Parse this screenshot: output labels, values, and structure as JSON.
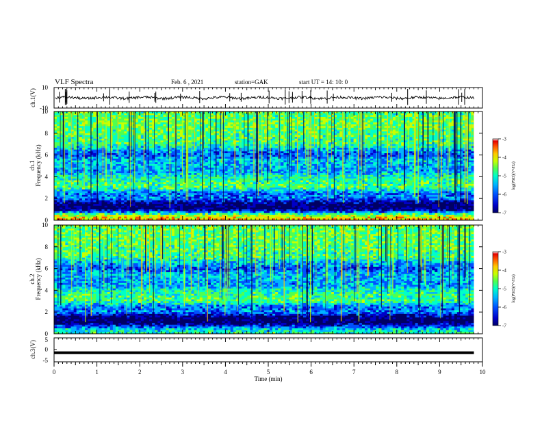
{
  "header": {
    "title": "VLF Spectra",
    "date": "Feb. 6 , 2021",
    "station": "station=GAK",
    "start_ut": "start UT =  14: 10: 0"
  },
  "colors": {
    "colormap": [
      "#000064",
      "#0000c8",
      "#0050ff",
      "#00b4ff",
      "#00ffc8",
      "#50ff50",
      "#c8ff00",
      "#ffc800",
      "#ff5000",
      "#e60000",
      "#ffffff"
    ]
  },
  "chart_data": [
    {
      "type": "line",
      "panel": "ch1-waveform",
      "ylabel": "ch.1(V)",
      "ylim": [
        -10,
        10
      ],
      "yticks": [
        "10",
        "-10"
      ],
      "x": [
        0,
        1,
        2,
        3,
        4,
        5,
        6,
        7,
        8,
        9,
        9.8
      ],
      "values": [
        0,
        0,
        0,
        0,
        0,
        0,
        0,
        0,
        0,
        0,
        0
      ]
    },
    {
      "type": "heatmap",
      "panel": "ch1-spectrogram",
      "ylabel_line1": "ch.1",
      "ylabel_line2": "Frequency (kHz)",
      "ylim": [
        0,
        10
      ],
      "yticks": [
        "0",
        "2",
        "4",
        "6",
        "8",
        "10"
      ],
      "xlim": [
        0,
        9.8
      ],
      "colorbar": {
        "label": "log(PSD)(V²/Hz)",
        "ticks": [
          "-3",
          "-4",
          "-5",
          "-6",
          "-7"
        ],
        "range": [
          -7,
          -3
        ]
      },
      "band_profile_khz": [
        0,
        0.5,
        1,
        1.5,
        2,
        2.5,
        3,
        3.5,
        4,
        4.5,
        5,
        5.5,
        6,
        6.5,
        7,
        8,
        9,
        10
      ],
      "band_profile_log_psd": [
        -3.8,
        -4.6,
        -6.9,
        -6.8,
        -5.8,
        -5.9,
        -4.9,
        -5.0,
        -5.2,
        -5.7,
        -5.6,
        -5.5,
        -6.0,
        -5.6,
        -5.0,
        -4.9,
        -4.8,
        -4.9
      ]
    },
    {
      "type": "heatmap",
      "panel": "ch2-spectrogram",
      "ylabel_line1": "ch.2",
      "ylabel_line2": "Frequency (kHz)",
      "ylim": [
        0,
        10
      ],
      "yticks": [
        "0",
        "2",
        "4",
        "6",
        "8",
        "10"
      ],
      "xlim": [
        0,
        9.8
      ],
      "colorbar": {
        "label": "log(PSD)(V²/Hz)",
        "ticks": [
          "-3",
          "-4",
          "-5",
          "-6",
          "-7"
        ],
        "range": [
          -7,
          -3
        ]
      },
      "band_profile_khz": [
        0,
        0.5,
        1,
        1.5,
        2,
        2.5,
        3,
        3.5,
        4,
        4.5,
        5,
        5.5,
        6,
        6.5,
        7,
        8,
        9,
        10
      ],
      "band_profile_log_psd": [
        -5.0,
        -5.6,
        -6.9,
        -6.8,
        -5.8,
        -5.9,
        -4.9,
        -5.0,
        -5.2,
        -5.7,
        -5.6,
        -5.5,
        -6.0,
        -5.6,
        -5.0,
        -4.9,
        -4.8,
        -4.9
      ]
    },
    {
      "type": "line",
      "panel": "ch3-waveform",
      "ylabel": "ch.3(V)",
      "ylim": [
        -5,
        5
      ],
      "yticks": [
        "5",
        "0",
        "-5"
      ],
      "x": [
        0,
        9.8
      ],
      "values": [
        -1.2,
        -1.2
      ]
    }
  ],
  "xaxis": {
    "label": "Time (min)",
    "xlim": [
      0,
      10
    ],
    "ticks": [
      "0",
      "1",
      "2",
      "3",
      "4",
      "5",
      "6",
      "7",
      "8",
      "9",
      "10"
    ]
  }
}
